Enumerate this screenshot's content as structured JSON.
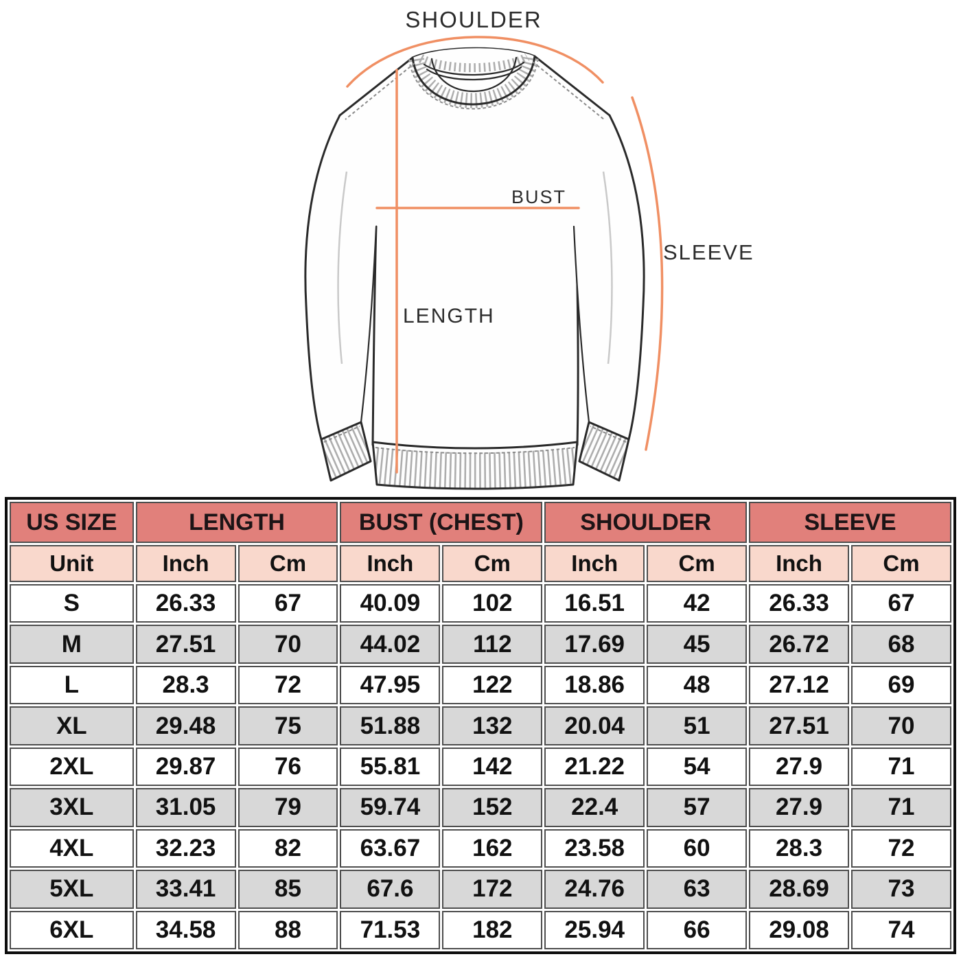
{
  "diagram": {
    "labels": {
      "shoulder": "SHOULDER",
      "bust": "BUST",
      "length": "LENGTH",
      "sleeve": "SLEEVE"
    }
  },
  "chart_data": {
    "type": "table",
    "column_groups": [
      {
        "label": "US SIZE",
        "span": 1
      },
      {
        "label": "LENGTH",
        "span": 2
      },
      {
        "label": "BUST (CHEST)",
        "span": 2
      },
      {
        "label": "SHOULDER",
        "span": 2
      },
      {
        "label": "SLEEVE",
        "span": 2
      }
    ],
    "columns": [
      "Unit",
      "Inch",
      "Cm",
      "Inch",
      "Cm",
      "Inch",
      "Cm",
      "Inch",
      "Cm"
    ],
    "rows": [
      [
        "S",
        "26.33",
        "67",
        "40.09",
        "102",
        "16.51",
        "42",
        "26.33",
        "67"
      ],
      [
        "M",
        "27.51",
        "70",
        "44.02",
        "112",
        "17.69",
        "45",
        "26.72",
        "68"
      ],
      [
        "L",
        "28.3",
        "72",
        "47.95",
        "122",
        "18.86",
        "48",
        "27.12",
        "69"
      ],
      [
        "XL",
        "29.48",
        "75",
        "51.88",
        "132",
        "20.04",
        "51",
        "27.51",
        "70"
      ],
      [
        "2XL",
        "29.87",
        "76",
        "55.81",
        "142",
        "21.22",
        "54",
        "27.9",
        "71"
      ],
      [
        "3XL",
        "31.05",
        "79",
        "59.74",
        "152",
        "22.4",
        "57",
        "27.9",
        "71"
      ],
      [
        "4XL",
        "32.23",
        "82",
        "63.67",
        "162",
        "23.58",
        "60",
        "28.3",
        "72"
      ],
      [
        "5XL",
        "33.41",
        "85",
        "67.6",
        "172",
        "24.76",
        "63",
        "28.69",
        "73"
      ],
      [
        "6XL",
        "34.58",
        "88",
        "71.53",
        "182",
        "25.94",
        "66",
        "29.08",
        "74"
      ]
    ]
  },
  "colors": {
    "header_bg": "#e1807b",
    "unit_bg": "#f9d8cc",
    "row_bg": "#ffffff",
    "row_alt_bg": "#d8d8d8",
    "table_border": "#4d4d4d",
    "outer_border": "#0d0d0d",
    "cell_text": "#111111",
    "measure_line": "#f08f63",
    "outline": "#2a2a2a",
    "label_text": "#2b2b2b"
  }
}
